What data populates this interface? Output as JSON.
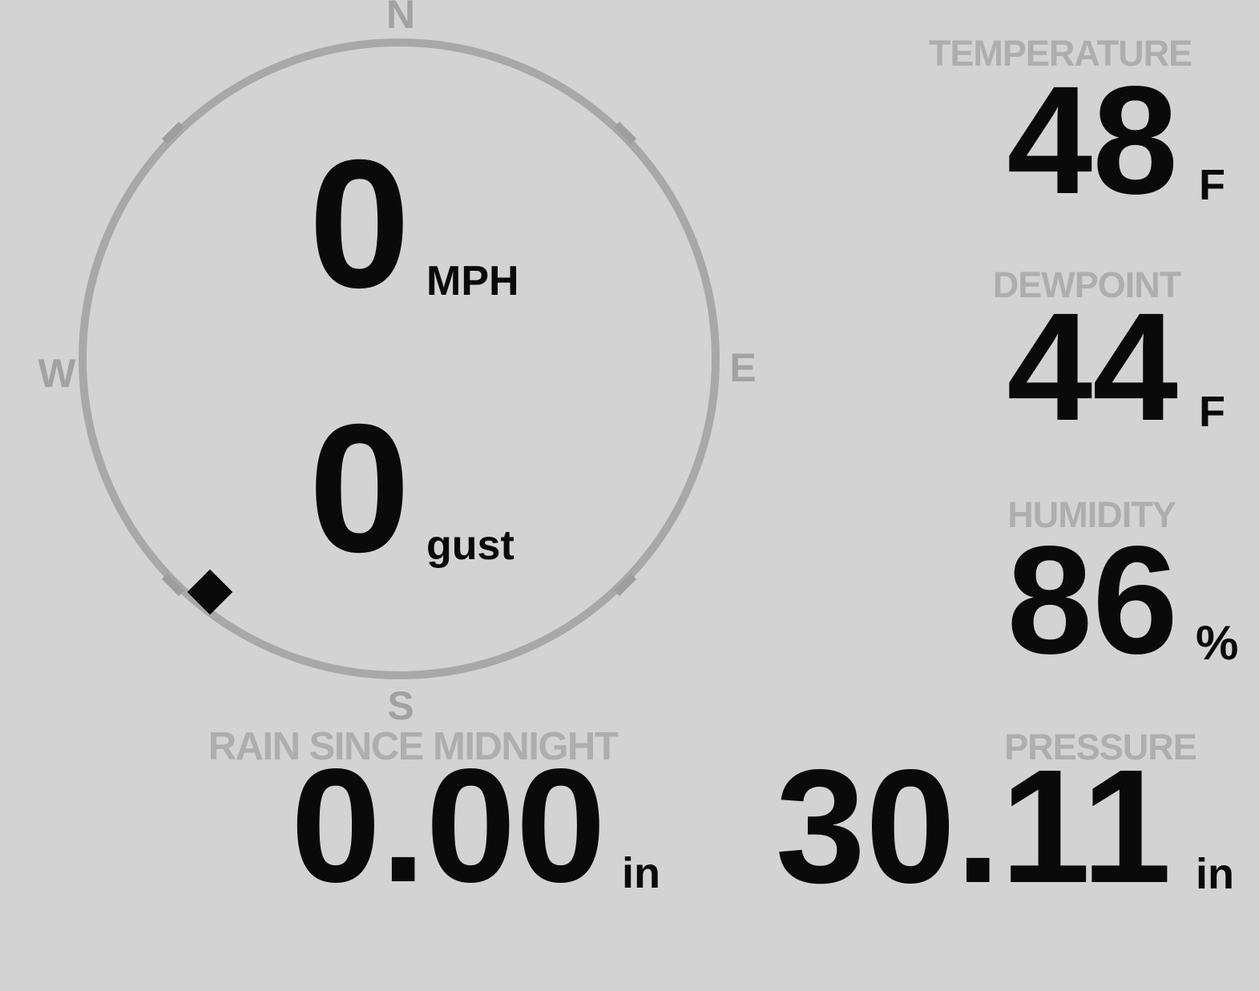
{
  "wind": {
    "compass": {
      "north": "N",
      "east": "E",
      "south": "S",
      "west": "W"
    },
    "speed": {
      "value": "0",
      "unit": "MPH"
    },
    "gust": {
      "value": "0",
      "unit": "gust"
    },
    "direction_degrees": 219
  },
  "temperature": {
    "label": "TEMPERATURE",
    "value": "48",
    "unit": "F"
  },
  "dewpoint": {
    "label": "DEWPOINT",
    "value": "44",
    "unit": "F"
  },
  "humidity": {
    "label": "HUMIDITY",
    "value": "86",
    "unit": "%"
  },
  "rain_since_midnight": {
    "label": "RAIN SINCE MIDNIGHT",
    "value": "0.00",
    "unit": "in"
  },
  "pressure": {
    "label": "PRESSURE",
    "value": "30.11",
    "unit": "in"
  },
  "colors": {
    "background": "#d2d3d2",
    "compass_ring": "#a8a8a8",
    "muted_label": "#aeaeae",
    "value_ink": "#0a0a0a"
  }
}
